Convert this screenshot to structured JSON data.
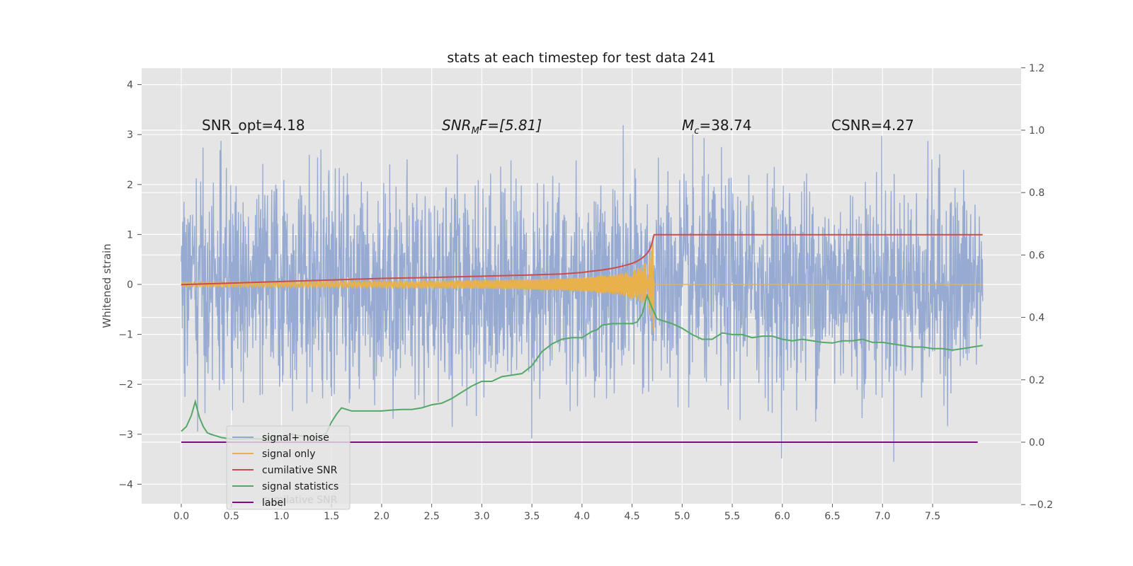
{
  "chart_data": {
    "type": "line",
    "title": "stats at each timestep for test data 241",
    "xlabel": "",
    "ylabel": "Whitened strain",
    "y2label": "",
    "xlim": [
      -0.39,
      8.3
    ],
    "ylim": [
      -4.4,
      4.4
    ],
    "y2lim": [
      -0.2,
      1.2
    ],
    "xticks": [
      "0.0",
      "0.5",
      "1.0",
      "1.5",
      "2.0",
      "2.5",
      "3.0",
      "3.5",
      "4.0",
      "4.5",
      "5.0",
      "5.5",
      "6.0",
      "6.5",
      "7.0",
      "7.5"
    ],
    "xtick_values": [
      0,
      0.5,
      1,
      1.5,
      2,
      2.5,
      3,
      3.5,
      4,
      4.5,
      5,
      5.5,
      6,
      6.5,
      7,
      7.5
    ],
    "yticks": [
      "4",
      "3",
      "2",
      "1",
      "0",
      "−1",
      "−2",
      "−3",
      "−4"
    ],
    "ytick_values": [
      4,
      3,
      2,
      1,
      0,
      -1,
      -2,
      -3,
      -4
    ],
    "y2ticks": [
      "1.2",
      "1.0",
      "0.8",
      "0.6",
      "0.4",
      "0.2",
      "0.0",
      "−0.2"
    ],
    "y2tick_values": [
      1.2,
      1.0,
      0.8,
      0.6,
      0.4,
      0.2,
      0.0,
      -0.2
    ],
    "grid": true,
    "annotations": {
      "snr_opt": "SNR_opt=4.18",
      "snr_mf_sym": "SNR",
      "snr_mf_sub": "M",
      "snr_mf_rest": "F=[5.81]",
      "mc_sym": "M",
      "mc_sub": "c",
      "mc_rest": "=38.74",
      "csnr": "CSNR=4.27"
    },
    "legend_position": "lower-left",
    "series": [
      {
        "name": "signal+ noise",
        "color": "#92a8d1",
        "axis": "left",
        "description": "white noise, approximately N(0,1)",
        "x_range": [
          0,
          8.0
        ],
        "amplitude_range": [
          -4.0,
          4.0
        ]
      },
      {
        "name": "signal only",
        "color": "#e8b14c",
        "axis": "left",
        "description": "chirp growing until merger",
        "merger_time": 4.72,
        "peak_amplitude": 1.25
      },
      {
        "name": "cumilative SNR",
        "color": "#cc4b4b",
        "axis": "right",
        "x": [
          0.0,
          0.5,
          1.0,
          1.5,
          2.0,
          2.5,
          3.0,
          3.5,
          3.8,
          4.0,
          4.1,
          4.2,
          4.3,
          4.4,
          4.5,
          4.55,
          4.6,
          4.65,
          4.68,
          4.7,
          4.72,
          4.75,
          5.0,
          6.0,
          7.0,
          8.0
        ],
        "values": [
          0.505,
          0.51,
          0.515,
          0.52,
          0.525,
          0.528,
          0.532,
          0.536,
          0.539,
          0.544,
          0.548,
          0.552,
          0.557,
          0.564,
          0.573,
          0.58,
          0.59,
          0.605,
          0.62,
          0.64,
          0.665,
          0.665,
          0.665,
          0.665,
          0.665,
          0.665
        ]
      },
      {
        "name": "signal statistics",
        "color": "#55a868",
        "axis": "right",
        "x": [
          0.0,
          0.05,
          0.1,
          0.14,
          0.18,
          0.22,
          0.26,
          0.3,
          0.35,
          0.4,
          0.5,
          0.6,
          0.7,
          0.8,
          0.9,
          1.0,
          1.1,
          1.2,
          1.3,
          1.4,
          1.45,
          1.5,
          1.55,
          1.6,
          1.65,
          1.7,
          1.8,
          1.9,
          2.0,
          2.1,
          2.2,
          2.3,
          2.4,
          2.5,
          2.6,
          2.7,
          2.8,
          2.9,
          3.0,
          3.1,
          3.2,
          3.3,
          3.4,
          3.5,
          3.6,
          3.7,
          3.8,
          3.9,
          4.0,
          4.1,
          4.15,
          4.2,
          4.3,
          4.4,
          4.5,
          4.55,
          4.6,
          4.65,
          4.7,
          4.75,
          4.8,
          4.9,
          5.0,
          5.1,
          5.2,
          5.3,
          5.4,
          5.5,
          5.6,
          5.7,
          5.8,
          5.9,
          6.0,
          6.1,
          6.2,
          6.3,
          6.4,
          6.5,
          6.6,
          6.7,
          6.8,
          6.9,
          7.0,
          7.1,
          7.2,
          7.3,
          7.4,
          7.5,
          7.6,
          7.7,
          7.8,
          7.9,
          8.0
        ],
        "values": [
          0.035,
          0.05,
          0.085,
          0.13,
          0.08,
          0.05,
          0.03,
          0.025,
          0.02,
          0.015,
          0.01,
          0.01,
          0.012,
          0.01,
          0.015,
          0.02,
          0.025,
          0.02,
          0.015,
          0.02,
          0.03,
          0.065,
          0.09,
          0.11,
          0.105,
          0.1,
          0.1,
          0.1,
          0.1,
          0.103,
          0.105,
          0.105,
          0.11,
          0.12,
          0.125,
          0.14,
          0.16,
          0.18,
          0.195,
          0.195,
          0.21,
          0.215,
          0.22,
          0.245,
          0.29,
          0.315,
          0.33,
          0.335,
          0.335,
          0.355,
          0.36,
          0.375,
          0.38,
          0.38,
          0.38,
          0.385,
          0.41,
          0.47,
          0.43,
          0.395,
          0.39,
          0.38,
          0.365,
          0.345,
          0.33,
          0.33,
          0.35,
          0.345,
          0.345,
          0.335,
          0.34,
          0.34,
          0.33,
          0.325,
          0.33,
          0.325,
          0.32,
          0.318,
          0.325,
          0.325,
          0.33,
          0.32,
          0.32,
          0.315,
          0.31,
          0.305,
          0.305,
          0.3,
          0.3,
          0.295,
          0.3,
          0.305,
          0.31
        ]
      },
      {
        "name": "label",
        "color": "#7b0f7b",
        "axis": "right",
        "x": [
          0.0,
          7.95
        ],
        "values": [
          0.0,
          0.0
        ]
      }
    ],
    "legend_ghost_text": "cumilative SNR"
  }
}
